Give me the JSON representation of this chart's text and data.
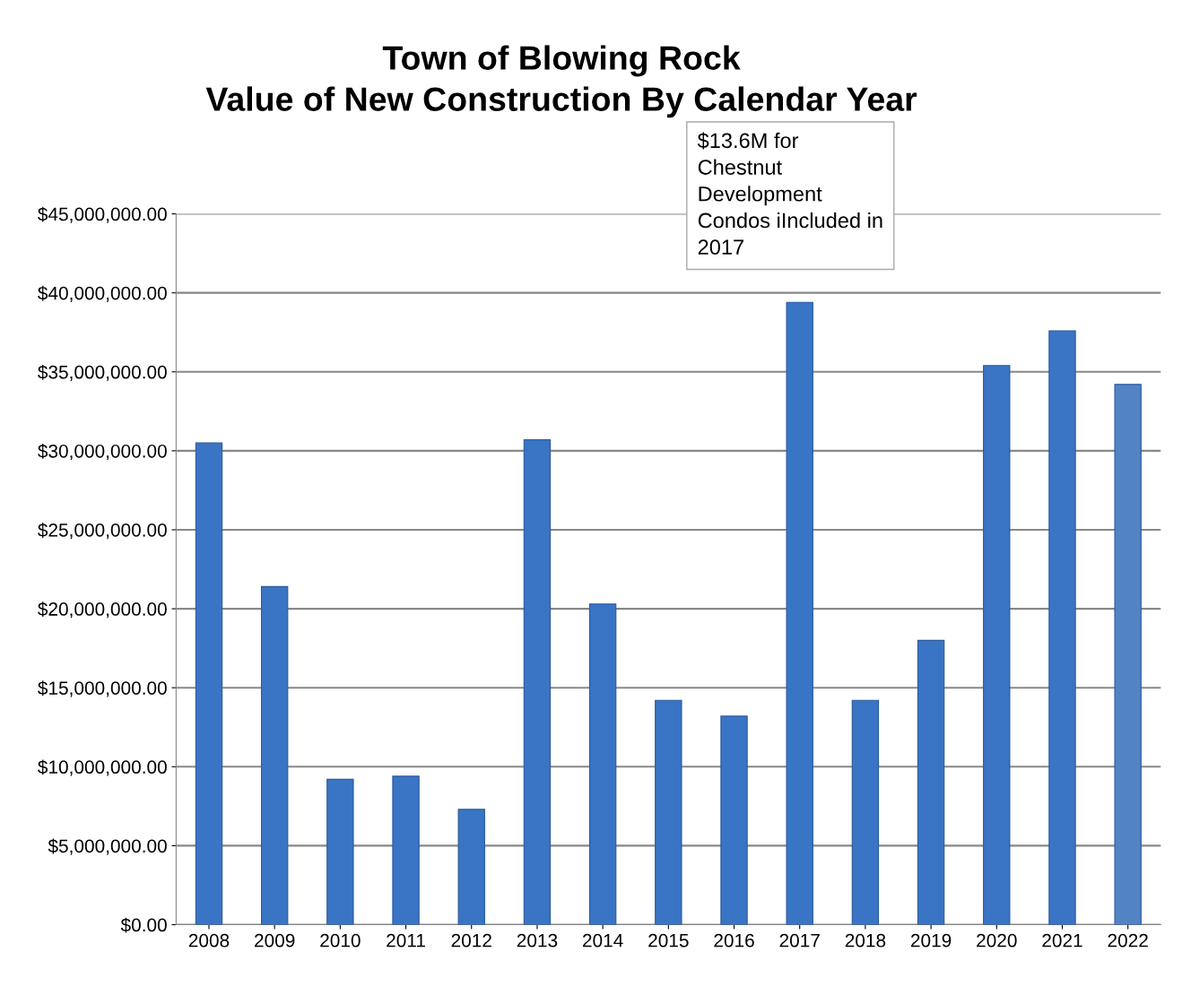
{
  "chart_data": {
    "type": "bar",
    "title": "Town of Blowing Rock\nValue of New Construction By Calendar Year",
    "categories": [
      "2008",
      "2009",
      "2010",
      "2011",
      "2012",
      "2013",
      "2014",
      "2015",
      "2016",
      "2017",
      "2018",
      "2019",
      "2020",
      "2021",
      "2022"
    ],
    "values": [
      30500000,
      21400000,
      9200000,
      9400000,
      7300000,
      30700000,
      20300000,
      14200000,
      13200000,
      39400000,
      14200000,
      18000000,
      35400000,
      37600000,
      34200000
    ],
    "colors": [
      "#3a74c4",
      "#3a74c4",
      "#3a74c4",
      "#3a74c4",
      "#3a74c4",
      "#3a74c4",
      "#3a74c4",
      "#3a74c4",
      "#3a74c4",
      "#3a74c4",
      "#3a74c4",
      "#3a74c4",
      "#3a74c4",
      "#3a74c4",
      "#5283c4"
    ],
    "ylim": [
      0,
      45000000
    ],
    "yticks": [
      {
        "value": 0,
        "label": "$0.00"
      },
      {
        "value": 5000000,
        "label": "$5,000,000.00"
      },
      {
        "value": 10000000,
        "label": "$10,000,000.00"
      },
      {
        "value": 15000000,
        "label": "$15,000,000.00"
      },
      {
        "value": 20000000,
        "label": "$20,000,000.00"
      },
      {
        "value": 25000000,
        "label": "$25,000,000.00"
      },
      {
        "value": 30000000,
        "label": "$30,000,000.00"
      },
      {
        "value": 35000000,
        "label": "$35,000,000.00"
      },
      {
        "value": 40000000,
        "label": "$40,000,000.00"
      },
      {
        "value": 45000000,
        "label": "$45,000,000.00"
      }
    ],
    "grid": "y",
    "annotations": [
      "$13.6M for\nChestnut\nDevelopment\nCondos iIncluded in\n2017"
    ]
  }
}
